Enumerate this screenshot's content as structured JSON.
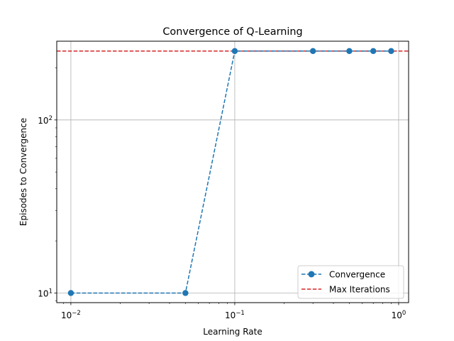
{
  "chart_data": {
    "type": "line",
    "title": "Convergence of Q-Learning",
    "xlabel": "Learning Rate",
    "ylabel": "Episodes to Convergence",
    "xscale": "log",
    "yscale": "log",
    "xlim": [
      0.0082,
      1.15
    ],
    "ylim": [
      8.8,
      285
    ],
    "grid": true,
    "legend_location": "lower right",
    "x_major_ticks": [
      {
        "value": 0.01,
        "base": "10",
        "exp": "−2"
      },
      {
        "value": 0.1,
        "base": "10",
        "exp": "−1"
      },
      {
        "value": 1,
        "base": "10",
        "exp": "0"
      }
    ],
    "y_major_ticks": [
      {
        "value": 10,
        "base": "10",
        "exp": "1"
      },
      {
        "value": 100,
        "base": "10",
        "exp": "2"
      }
    ],
    "series": [
      {
        "name": "Convergence",
        "style": "dashed-line-with-circle-markers",
        "color": "#1f77b4",
        "x": [
          0.01,
          0.05,
          0.1,
          0.3,
          0.5,
          0.7,
          0.9
        ],
        "y": [
          10,
          10,
          250,
          250,
          250,
          250,
          250
        ]
      }
    ],
    "reference_lines": [
      {
        "name": "Max Iterations",
        "orientation": "horizontal",
        "y": 250,
        "style": "dashed",
        "color": "#d62728"
      }
    ],
    "legend": [
      "Convergence",
      "Max Iterations"
    ]
  }
}
